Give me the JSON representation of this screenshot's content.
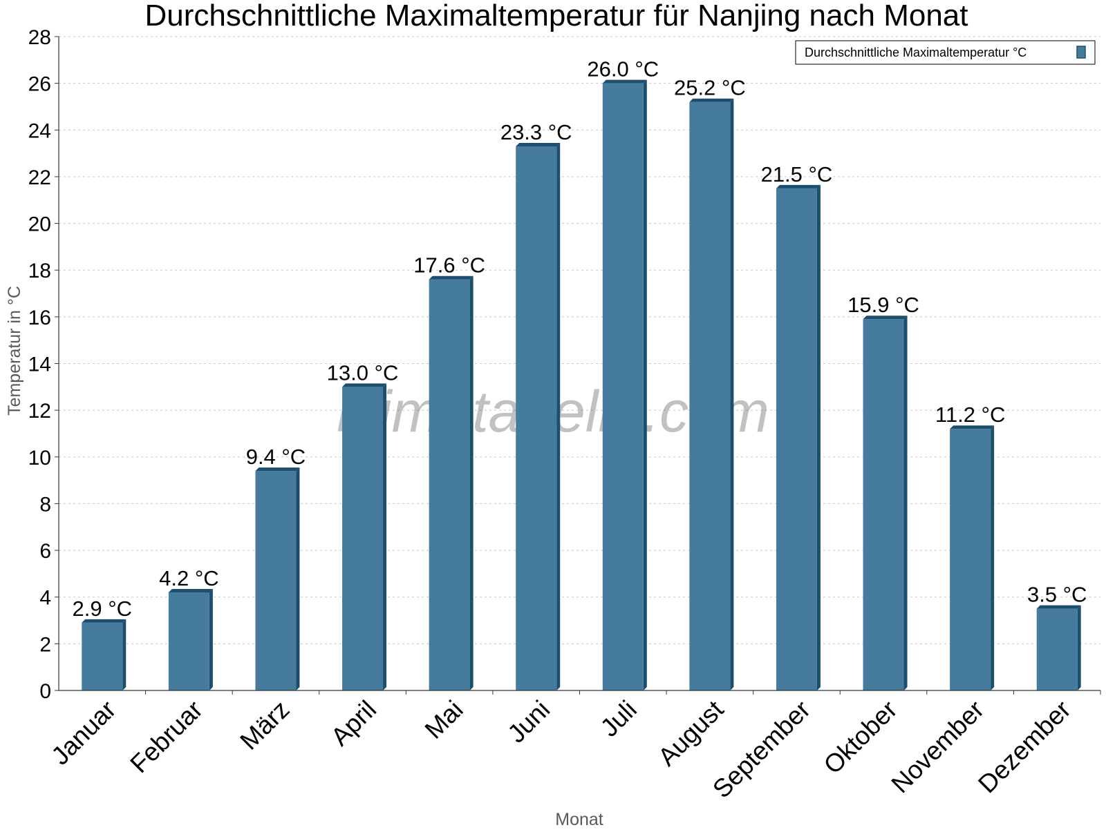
{
  "chart_data": {
    "type": "bar",
    "title": "Durchschnittliche Maximaltemperatur für Nanjing nach Monat",
    "xlabel": "Monat",
    "ylabel": "Temperatur in °C",
    "ylim": [
      0,
      28
    ],
    "yticks": [
      "0",
      "2",
      "4",
      "6",
      "8",
      "10",
      "12",
      "14",
      "16",
      "18",
      "20",
      "22",
      "24",
      "26",
      "28"
    ],
    "categories": [
      "Januar",
      "Februar",
      "März",
      "April",
      "Mai",
      "Juni",
      "Juli",
      "August",
      "September",
      "Oktober",
      "November",
      "Dezember"
    ],
    "series": [
      {
        "name": "Durchschnittliche Maximaltemperatur °C",
        "values": [
          2.9,
          4.2,
          9.4,
          13.0,
          17.6,
          23.3,
          26.0,
          25.2,
          21.5,
          15.9,
          11.2,
          3.5
        ],
        "labels": [
          "2.9 °C",
          "4.2 °C",
          "9.4 °C",
          "13.0 °C",
          "17.6 °C",
          "23.3 °C",
          "26.0 °C",
          "25.2 °C",
          "21.5 °C",
          "15.9 °C",
          "11.2 °C",
          "3.5 °C"
        ],
        "color": "#457b9d",
        "edge_color": "#1d4e6e"
      }
    ],
    "grid": true,
    "legend_position": "top-right",
    "watermark": "klimatabelle.com"
  }
}
